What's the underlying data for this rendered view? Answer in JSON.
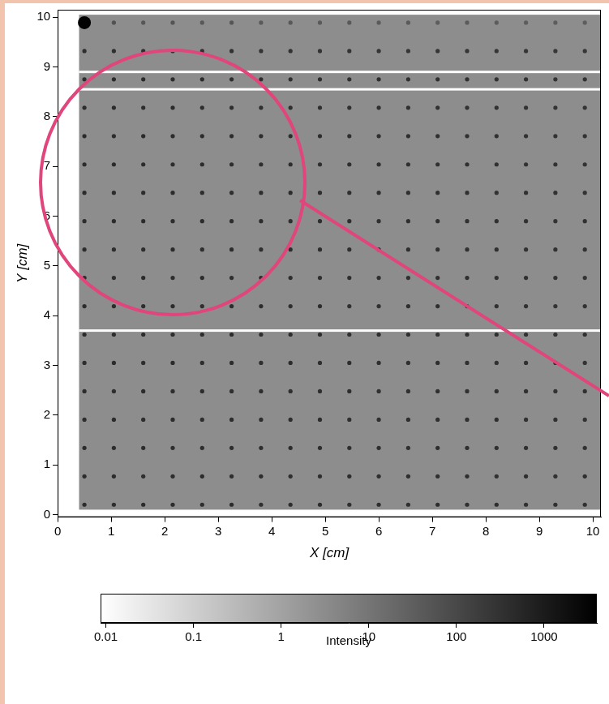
{
  "chart_data": {
    "type": "heatmap",
    "x_label": "X [cm]",
    "y_label": "Y [cm]",
    "xlim": [
      0,
      10.15
    ],
    "ylim": [
      -0.05,
      10.15
    ],
    "xticks": [
      0,
      1,
      2,
      3,
      4,
      5,
      6,
      7,
      8,
      9,
      10
    ],
    "yticks": [
      0,
      1,
      2,
      3,
      4,
      5,
      6,
      7,
      8,
      9,
      10
    ],
    "grid": false,
    "background": {
      "value": 3,
      "x": [
        0.4,
        10.15
      ],
      "y": [
        0.1,
        10.05
      ]
    },
    "gaps": {
      "value": 0.01,
      "y": [
        3.7,
        8.55,
        8.9
      ]
    },
    "spot_x": [
      0.5,
      1.05,
      1.6,
      2.15,
      2.7,
      3.25,
      3.8,
      4.35,
      4.9,
      5.45,
      6.0,
      6.55,
      7.1,
      7.65,
      8.2,
      8.75,
      9.3,
      9.85
    ],
    "spot_y": [
      0.2,
      0.77,
      1.34,
      1.91,
      2.48,
      3.05,
      3.62,
      4.19,
      4.76,
      5.33,
      5.9,
      6.47,
      7.04,
      7.61,
      8.18,
      8.75,
      9.32,
      9.89
    ],
    "spot_values": [
      [
        420,
        380,
        450,
        400,
        390,
        430,
        370,
        410,
        400,
        360,
        380,
        350,
        390,
        340,
        370,
        330,
        350,
        320
      ],
      [
        400,
        430,
        390,
        410,
        440,
        380,
        420,
        390,
        370,
        400,
        360,
        380,
        340,
        370,
        330,
        360,
        320,
        340
      ],
      [
        450,
        400,
        420,
        380,
        410,
        400,
        390,
        430,
        380,
        370,
        390,
        350,
        380,
        360,
        340,
        350,
        330,
        310
      ],
      [
        410,
        440,
        400,
        430,
        390,
        420,
        380,
        400,
        410,
        360,
        370,
        380,
        350,
        340,
        360,
        320,
        340,
        300
      ],
      [
        430,
        390,
        450,
        400,
        420,
        380,
        410,
        370,
        390,
        400,
        350,
        370,
        360,
        330,
        350,
        340,
        310,
        330
      ],
      [
        400,
        420,
        380,
        440,
        400,
        410,
        390,
        420,
        370,
        380,
        360,
        340,
        370,
        350,
        320,
        340,
        330,
        300
      ],
      [
        440,
        400,
        430,
        390,
        410,
        430,
        380,
        400,
        390,
        360,
        380,
        370,
        340,
        360,
        340,
        310,
        330,
        320
      ],
      [
        420,
        450,
        400,
        420,
        380,
        400,
        420,
        380,
        400,
        370,
        350,
        380,
        360,
        330,
        350,
        330,
        300,
        310
      ],
      [
        400,
        410,
        440,
        400,
        430,
        390,
        400,
        410,
        370,
        390,
        370,
        340,
        350,
        360,
        320,
        340,
        320,
        300
      ],
      [
        430,
        400,
        410,
        450,
        390,
        420,
        380,
        390,
        400,
        360,
        380,
        360,
        330,
        340,
        350,
        310,
        330,
        310
      ],
      [
        410,
        440,
        420,
        400,
        430,
        400,
        410,
        370,
        380,
        390,
        350,
        370,
        360,
        320,
        340,
        330,
        300,
        320
      ],
      [
        450,
        420,
        400,
        430,
        410,
        380,
        400,
        420,
        390,
        360,
        370,
        340,
        350,
        340,
        310,
        330,
        320,
        300
      ],
      [
        420,
        460,
        430,
        400,
        420,
        410,
        390,
        400,
        370,
        380,
        360,
        350,
        330,
        350,
        330,
        300,
        310,
        290
      ],
      [
        440,
        430,
        470,
        420,
        400,
        430,
        410,
        380,
        390,
        370,
        350,
        360,
        340,
        320,
        330,
        310,
        300,
        290
      ],
      [
        430,
        450,
        420,
        440,
        410,
        400,
        380,
        390,
        370,
        360,
        340,
        350,
        330,
        310,
        320,
        300,
        290,
        280
      ],
      [
        410,
        440,
        430,
        400,
        420,
        390,
        400,
        370,
        380,
        350,
        360,
        330,
        320,
        330,
        300,
        310,
        280,
        290
      ],
      [
        380,
        360,
        340,
        350,
        330,
        320,
        300,
        310,
        290,
        300,
        280,
        270,
        260,
        270,
        250,
        260,
        240,
        250
      ],
      [
        3500,
        60,
        50,
        55,
        45,
        50,
        40,
        45,
        40,
        42,
        38,
        40,
        35,
        38,
        36,
        34,
        35,
        33
      ]
    ],
    "colorbar": {
      "label": "Intensity",
      "log": true,
      "range": [
        0.0087,
        4000
      ],
      "ticks": [
        0.01,
        0.1,
        1,
        10,
        100,
        1000
      ]
    }
  }
}
